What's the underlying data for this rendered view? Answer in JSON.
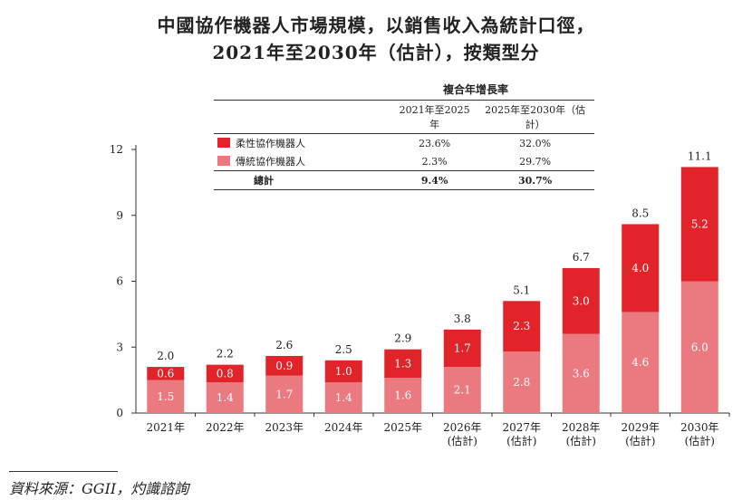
{
  "title_line1": "中國協作機器人市場規模，以銷售收入為統計口徑，",
  "title_line2": "2021年至2030年（估計），按類型分",
  "cagr_table": {
    "header": "複合年增長率",
    "columns": [
      "",
      "2021年至2025年",
      "2025年至2030年（估計）"
    ],
    "rows": [
      {
        "label": "柔性協作機器人",
        "color": "#e0242a",
        "v1": "23.6%",
        "v2": "32.0%"
      },
      {
        "label": "傳統協作機器人",
        "color": "#ea7a7f",
        "v1": "2.3%",
        "v2": "29.7%"
      }
    ],
    "total": {
      "label": "總計",
      "v1": "9.4%",
      "v2": "30.7%"
    }
  },
  "chart_data": {
    "type": "bar",
    "stacked": true,
    "categories": [
      "2021年",
      "2022年",
      "2023年",
      "2024年",
      "2025年",
      "2026年\n(估計)",
      "2027年\n(估計)",
      "2028年\n(估計)",
      "2029年\n(估計)",
      "2030年\n(估計)"
    ],
    "series": [
      {
        "name": "傳統協作機器人",
        "color": "#ea7a7f",
        "values": [
          1.5,
          1.4,
          1.7,
          1.4,
          1.6,
          2.1,
          2.8,
          3.6,
          4.6,
          6.0
        ]
      },
      {
        "name": "柔性協作機器人",
        "color": "#e0242a",
        "values": [
          0.6,
          0.8,
          0.9,
          1.0,
          1.3,
          1.7,
          2.3,
          3.0,
          4.0,
          5.2
        ]
      }
    ],
    "totals": [
      2.0,
      2.2,
      2.6,
      2.5,
      2.9,
      3.8,
      5.1,
      6.7,
      8.5,
      11.1
    ],
    "ylim": [
      0,
      12
    ],
    "yticks": [
      0,
      3,
      6,
      9,
      12
    ],
    "grid": false
  },
  "source": "資料來源：GGII，灼識諮詢"
}
